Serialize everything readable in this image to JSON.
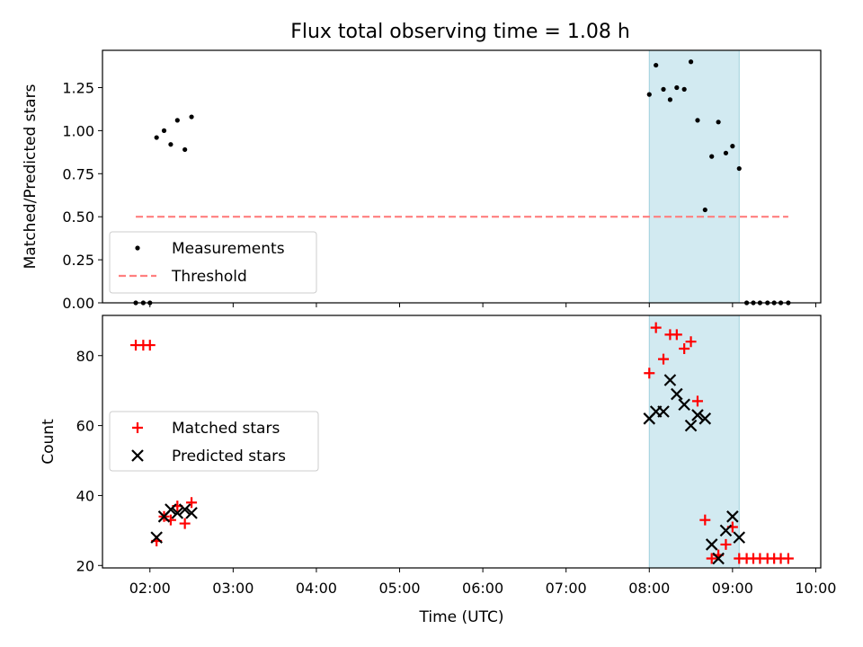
{
  "title": "Flux total observing time = 1.08 h",
  "chart_data": [
    {
      "type": "scatter",
      "ylabel": "Matched/Predicted stars",
      "xlim": [
        1.43,
        10.06
      ],
      "ylim": [
        0,
        1.4665
      ],
      "yticks": [
        0.0,
        0.25,
        0.5,
        0.75,
        1.0,
        1.25
      ],
      "ytick_labels": [
        "0.00",
        "0.25",
        "0.50",
        "0.75",
        "1.00",
        "1.25"
      ],
      "shaded_span": {
        "x0": 8.0,
        "x1": 9.08,
        "color": "#add8e6"
      },
      "series": [
        {
          "name": "Measurements",
          "marker": "dot",
          "color": "#000000",
          "x": [
            1.83,
            1.92,
            2.0,
            2.08,
            2.17,
            2.25,
            2.33,
            2.42,
            2.5,
            8.0,
            8.08,
            8.17,
            8.25,
            8.33,
            8.42,
            8.5,
            8.58,
            8.67,
            8.75,
            8.83,
            8.92,
            9.0,
            9.08,
            9.17,
            9.25,
            9.33,
            9.42,
            9.5,
            9.58,
            9.67
          ],
          "y": [
            0,
            0,
            0,
            0.96,
            1.0,
            0.92,
            1.06,
            0.89,
            1.08,
            1.21,
            1.38,
            1.24,
            1.18,
            1.25,
            1.24,
            1.4,
            1.06,
            0.54,
            0.85,
            1.05,
            0.87,
            0.91,
            0.78,
            0,
            0,
            0,
            0,
            0,
            0,
            0
          ]
        },
        {
          "name": "Threshold",
          "style": "dashed",
          "color": "#ff7f7f",
          "x": [
            1.83,
            9.67
          ],
          "y": [
            0.5,
            0.5
          ]
        }
      ],
      "legend": "lower-left"
    },
    {
      "type": "scatter",
      "ylabel": "Count",
      "xlabel": "Time (UTC)",
      "xlim": [
        1.43,
        10.06
      ],
      "ylim": [
        19.3,
        91.5
      ],
      "yticks": [
        20,
        40,
        60,
        80
      ],
      "ytick_labels": [
        "20",
        "40",
        "60",
        "80"
      ],
      "xticks": [
        2,
        3,
        4,
        5,
        6,
        7,
        8,
        9,
        10
      ],
      "xtick_labels": [
        "02:00",
        "03:00",
        "04:00",
        "05:00",
        "06:00",
        "07:00",
        "08:00",
        "09:00",
        "10:00"
      ],
      "shaded_span": {
        "x0": 8.0,
        "x1": 9.08,
        "color": "#add8e6"
      },
      "series": [
        {
          "name": "Matched stars",
          "marker": "plus",
          "color": "#ff0000",
          "x": [
            1.83,
            1.92,
            2.0,
            2.08,
            2.17,
            2.25,
            2.33,
            2.42,
            2.5,
            8.0,
            8.08,
            8.17,
            8.25,
            8.33,
            8.42,
            8.5,
            8.58,
            8.67,
            8.75,
            8.83,
            8.92,
            9.0,
            9.08,
            9.17,
            9.25,
            9.33,
            9.42,
            9.5,
            9.58,
            9.67
          ],
          "y": [
            83,
            83,
            83,
            27,
            34,
            33,
            37,
            32,
            38,
            75,
            88,
            79,
            86,
            86,
            82,
            84,
            67,
            33,
            22,
            23,
            26,
            31,
            22,
            22,
            22,
            22,
            22,
            22,
            22,
            22
          ]
        },
        {
          "name": "Predicted stars",
          "marker": "x",
          "color": "#000000",
          "x": [
            2.08,
            2.17,
            2.25,
            2.33,
            2.42,
            2.5,
            8.0,
            8.08,
            8.17,
            8.25,
            8.33,
            8.42,
            8.5,
            8.58,
            8.67,
            8.75,
            8.83,
            8.92,
            9.0,
            9.08
          ],
          "y": [
            28,
            34,
            36,
            35,
            36,
            35,
            62,
            64,
            64,
            73,
            69,
            66,
            60,
            63,
            62,
            26,
            22,
            30,
            34,
            28
          ]
        }
      ],
      "legend": "center-left"
    }
  ]
}
